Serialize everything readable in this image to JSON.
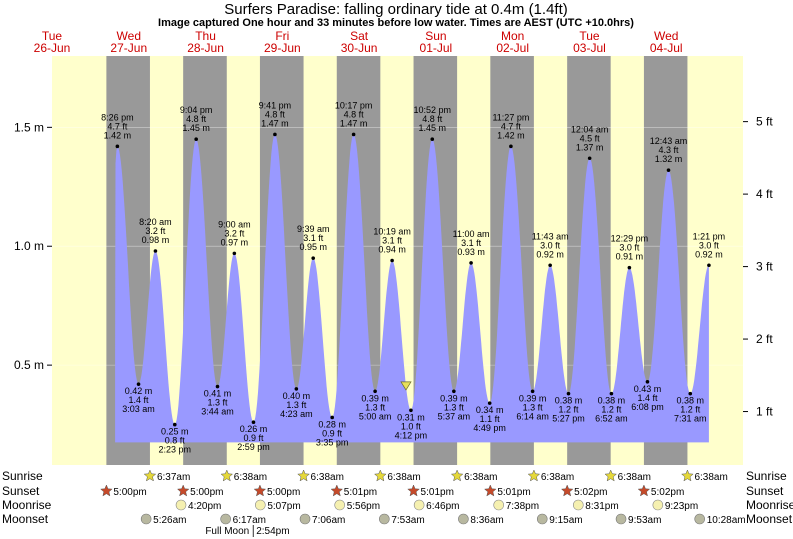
{
  "title": "Surfers Paradise: falling  ordinary tide at 0.4m (1.4ft)",
  "subtitle": "Image captured One hour and 33 minutes before low water. Times are AEST (UTC +10.0hrs)",
  "colors": {
    "day": "#ffffcc",
    "night": "#999999",
    "tide_fill": "#9999ff",
    "weekend_header": "#cc0000",
    "sun_yellow": "#e5d83a",
    "sun_red": "#c64a2a",
    "moon_pale": "#f5f0b0",
    "moon_grey": "#b8b8a0"
  },
  "days": [
    {
      "dow": "Tue",
      "date": "26-Jun"
    },
    {
      "dow": "Wed",
      "date": "27-Jun"
    },
    {
      "dow": "Thu",
      "date": "28-Jun"
    },
    {
      "dow": "Fri",
      "date": "29-Jun"
    },
    {
      "dow": "Sat",
      "date": "30-Jun"
    },
    {
      "dow": "Sun",
      "date": "01-Jul"
    },
    {
      "dow": "Mon",
      "date": "02-Jul"
    },
    {
      "dow": "Tue",
      "date": "03-Jul"
    },
    {
      "dow": "Wed",
      "date": "04-Jul"
    }
  ],
  "chart_data": {
    "type": "area",
    "time_start": "26-Jun 00:00",
    "time_end": "04-Jul 24:00",
    "y_left_ticks": [
      "0.5 m",
      "1.0 m",
      "1.5 m"
    ],
    "y_left_values": [
      0.5,
      1.0,
      1.5
    ],
    "y_right_ticks": [
      "1 ft",
      "2 ft",
      "3 ft",
      "4 ft",
      "5 ft"
    ],
    "y_right_values": [
      1,
      2,
      3,
      4,
      5
    ],
    "y_range_m": [
      0.08,
      1.8
    ],
    "current": {
      "label": "falling  ordinary tide at 0.4m (1.4ft)",
      "time": "30-Jun 14:39",
      "height_m": 0.4
    },
    "tides": [
      {
        "type": "high",
        "time": "26-Jun 20:26",
        "time_label": "8:26 pm",
        "ft": "4.7 ft",
        "m": "1.42 m",
        "height": 1.42
      },
      {
        "type": "low",
        "time": "27-Jun 03:03",
        "time_label": "3:03 am",
        "ft": "1.4 ft",
        "m": "0.42 m",
        "height": 0.42
      },
      {
        "type": "high",
        "time": "27-Jun 08:20",
        "time_label": "8:20 am",
        "ft": "3.2 ft",
        "m": "0.98 m",
        "height": 0.98
      },
      {
        "type": "low",
        "time": "27-Jun 14:23",
        "time_label": "2:23 pm",
        "ft": "0.8 ft",
        "m": "0.25 m",
        "height": 0.25
      },
      {
        "type": "high",
        "time": "27-Jun 21:04",
        "time_label": "9:04 pm",
        "ft": "4.8 ft",
        "m": "1.45 m",
        "height": 1.45
      },
      {
        "type": "low",
        "time": "28-Jun 03:44",
        "time_label": "3:44 am",
        "ft": "1.3 ft",
        "m": "0.41 m",
        "height": 0.41
      },
      {
        "type": "high",
        "time": "28-Jun 09:00",
        "time_label": "9:00 am",
        "ft": "3.2 ft",
        "m": "0.97 m",
        "height": 0.97
      },
      {
        "type": "low",
        "time": "28-Jun 14:59",
        "time_label": "2:59 pm",
        "ft": "0.9 ft",
        "m": "0.26 m",
        "height": 0.26
      },
      {
        "type": "high",
        "time": "28-Jun 21:41",
        "time_label": "9:41 pm",
        "ft": "4.8 ft",
        "m": "1.47 m",
        "height": 1.47
      },
      {
        "type": "low",
        "time": "29-Jun 04:23",
        "time_label": "4:23 am",
        "ft": "1.3 ft",
        "m": "0.40 m",
        "height": 0.4
      },
      {
        "type": "high",
        "time": "29-Jun 09:39",
        "time_label": "9:39 am",
        "ft": "3.1 ft",
        "m": "0.95 m",
        "height": 0.95
      },
      {
        "type": "low",
        "time": "29-Jun 15:35",
        "time_label": "3:35 pm",
        "ft": "0.9 ft",
        "m": "0.28 m",
        "height": 0.28
      },
      {
        "type": "high",
        "time": "29-Jun 22:17",
        "time_label": "10:17 pm",
        "ft": "4.8 ft",
        "m": "1.47 m",
        "height": 1.47
      },
      {
        "type": "low",
        "time": "30-Jun 05:00",
        "time_label": "5:00 am",
        "ft": "1.3 ft",
        "m": "0.39 m",
        "height": 0.39
      },
      {
        "type": "high",
        "time": "30-Jun 10:19",
        "time_label": "10:19 am",
        "ft": "3.1 ft",
        "m": "0.94 m",
        "height": 0.94
      },
      {
        "type": "low",
        "time": "30-Jun 16:12",
        "time_label": "4:12 pm",
        "ft": "1.0 ft",
        "m": "0.31 m",
        "height": 0.31
      },
      {
        "type": "high",
        "time": "30-Jun 22:52",
        "time_label": "10:52 pm",
        "ft": "4.8 ft",
        "m": "1.45 m",
        "height": 1.45
      },
      {
        "type": "low",
        "time": "01-Jul 05:37",
        "time_label": "5:37 am",
        "ft": "1.3 ft",
        "m": "0.39 m",
        "height": 0.39
      },
      {
        "type": "high",
        "time": "01-Jul 11:00",
        "time_label": "11:00 am",
        "ft": "3.1 ft",
        "m": "0.93 m",
        "height": 0.93
      },
      {
        "type": "low",
        "time": "01-Jul 16:49",
        "time_label": "4:49 pm",
        "ft": "1.1 ft",
        "m": "0.34 m",
        "height": 0.34
      },
      {
        "type": "high",
        "time": "01-Jul 23:27",
        "time_label": "11:27 pm",
        "ft": "4.7 ft",
        "m": "1.42 m",
        "height": 1.42
      },
      {
        "type": "low",
        "time": "02-Jul 06:14",
        "time_label": "6:14 am",
        "ft": "1.3 ft",
        "m": "0.39 m",
        "height": 0.39
      },
      {
        "type": "high",
        "time": "02-Jul 11:43",
        "time_label": "11:43 am",
        "ft": "3.0 ft",
        "m": "0.92 m",
        "height": 0.92
      },
      {
        "type": "low",
        "time": "02-Jul 17:27",
        "time_label": "5:27 pm",
        "ft": "1.2 ft",
        "m": "0.38 m",
        "height": 0.38
      },
      {
        "type": "high",
        "time": "03-Jul 00:04",
        "time_label": "12:04 am",
        "ft": "4.5 ft",
        "m": "1.37 m",
        "height": 1.37
      },
      {
        "type": "low",
        "time": "03-Jul 06:52",
        "time_label": "6:52 am",
        "ft": "1.2 ft",
        "m": "0.38 m",
        "height": 0.38
      },
      {
        "type": "high",
        "time": "03-Jul 12:29",
        "time_label": "12:29 pm",
        "ft": "3.0 ft",
        "m": "0.91 m",
        "height": 0.91
      },
      {
        "type": "low",
        "time": "03-Jul 18:08",
        "time_label": "6:08 pm",
        "ft": "1.4 ft",
        "m": "0.43 m",
        "height": 0.43
      },
      {
        "type": "high",
        "time": "04-Jul 00:43",
        "time_label": "12:43 am",
        "ft": "4.3 ft",
        "m": "1.32 m",
        "height": 1.32
      },
      {
        "type": "low",
        "time": "04-Jul 07:31",
        "time_label": "7:31 am",
        "ft": "1.2 ft",
        "m": "0.38 m",
        "height": 0.38
      },
      {
        "type": "high",
        "time": "04-Jul 13:21",
        "time_label": "1:21 pm",
        "ft": "3.0 ft",
        "m": "0.92 m",
        "height": 0.92
      }
    ]
  },
  "astro": {
    "row_labels": [
      "Sunrise",
      "Sunset",
      "Moonrise",
      "Moonset"
    ],
    "sunrise": [
      {
        "time": "27-Jun 06:37",
        "label": "6:37am"
      },
      {
        "time": "28-Jun 06:38",
        "label": "6:38am"
      },
      {
        "time": "29-Jun 06:38",
        "label": "6:38am"
      },
      {
        "time": "30-Jun 06:38",
        "label": "6:38am"
      },
      {
        "time": "01-Jul 06:38",
        "label": "6:38am"
      },
      {
        "time": "02-Jul 06:38",
        "label": "6:38am"
      },
      {
        "time": "03-Jul 06:38",
        "label": "6:38am"
      },
      {
        "time": "04-Jul 06:38",
        "label": "6:38am"
      }
    ],
    "sunset": [
      {
        "time": "26-Jun 17:00",
        "label": "5:00pm"
      },
      {
        "time": "27-Jun 17:00",
        "label": "5:00pm"
      },
      {
        "time": "28-Jun 17:00",
        "label": "5:00pm"
      },
      {
        "time": "29-Jun 17:01",
        "label": "5:01pm"
      },
      {
        "time": "30-Jun 17:01",
        "label": "5:01pm"
      },
      {
        "time": "01-Jul 17:01",
        "label": "5:01pm"
      },
      {
        "time": "02-Jul 17:02",
        "label": "5:02pm"
      },
      {
        "time": "03-Jul 17:02",
        "label": "5:02pm"
      }
    ],
    "moonrise": [
      {
        "time": "27-Jun 16:20",
        "label": "4:20pm"
      },
      {
        "time": "28-Jun 17:07",
        "label": "5:07pm"
      },
      {
        "time": "29-Jun 17:56",
        "label": "5:56pm"
      },
      {
        "time": "30-Jun 18:46",
        "label": "6:46pm"
      },
      {
        "time": "01-Jul 19:38",
        "label": "7:38pm"
      },
      {
        "time": "02-Jul 20:31",
        "label": "8:31pm"
      },
      {
        "time": "03-Jul 21:23",
        "label": "9:23pm"
      }
    ],
    "moonset": [
      {
        "time": "27-Jun 05:26",
        "label": "5:26am"
      },
      {
        "time": "28-Jun 06:17",
        "label": "6:17am"
      },
      {
        "time": "29-Jun 07:06",
        "label": "7:06am"
      },
      {
        "time": "30-Jun 07:53",
        "label": "7:53am"
      },
      {
        "time": "01-Jul 08:36",
        "label": "8:36am"
      },
      {
        "time": "02-Jul 09:15",
        "label": "9:15am"
      },
      {
        "time": "03-Jul 09:53",
        "label": "9:53am"
      },
      {
        "time": "04-Jul 10:28",
        "label": "10:28am"
      }
    ],
    "full_moon_label": "Full Moon",
    "full_moon_time": "28-Jun 14:54",
    "full_moon_time_label": "2:54pm"
  }
}
